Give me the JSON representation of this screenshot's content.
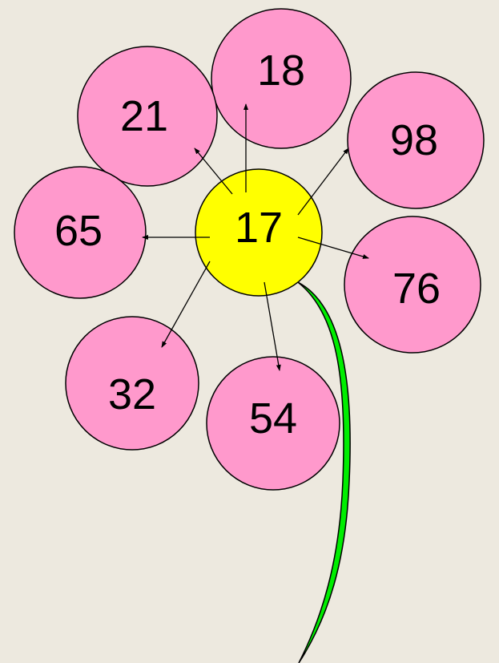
{
  "nodes": [
    {
      "label": "17"
    },
    {
      "label": "18"
    },
    {
      "label": "21"
    },
    {
      "label": "98"
    },
    {
      "label": "65"
    },
    {
      "label": "76"
    },
    {
      "label": "32"
    },
    {
      "label": "54"
    }
  ]
}
